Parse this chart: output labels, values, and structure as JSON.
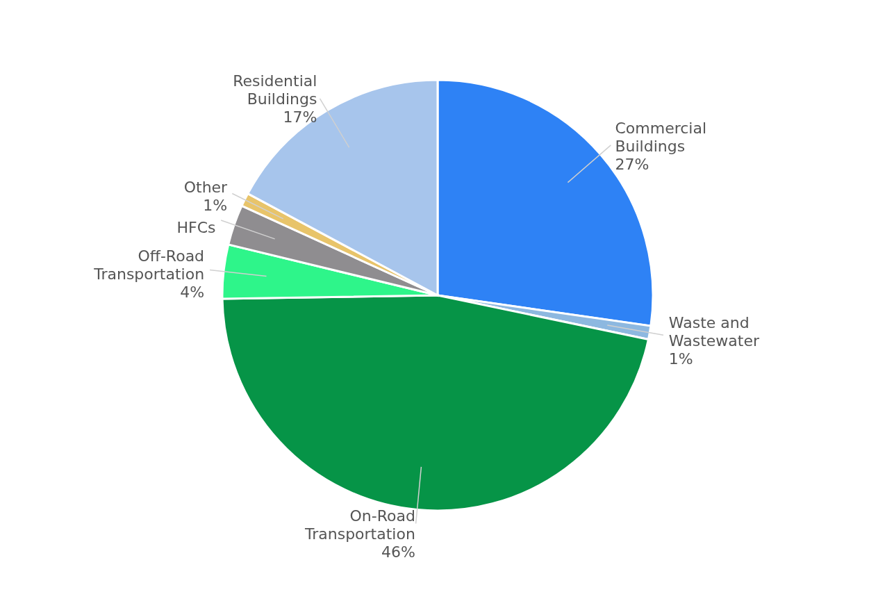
{
  "chart_data": {
    "type": "pie",
    "categories": [
      "Commercial Buildings",
      "Waste and Wastewater",
      "On-Road Transportation",
      "Off-Road Transportation",
      "HFCs",
      "Other",
      "Residential Buildings"
    ],
    "values": [
      27,
      1,
      46,
      4,
      3,
      1,
      17
    ],
    "value_labels": [
      "27%",
      "1%",
      "46%",
      "4%",
      null,
      "1%",
      "17%"
    ],
    "colors": [
      "#2e82f5",
      "#8db8e0",
      "#069447",
      "#2ef58a",
      "#8f8d90",
      "#e8c46a",
      "#a7c5ec"
    ]
  }
}
